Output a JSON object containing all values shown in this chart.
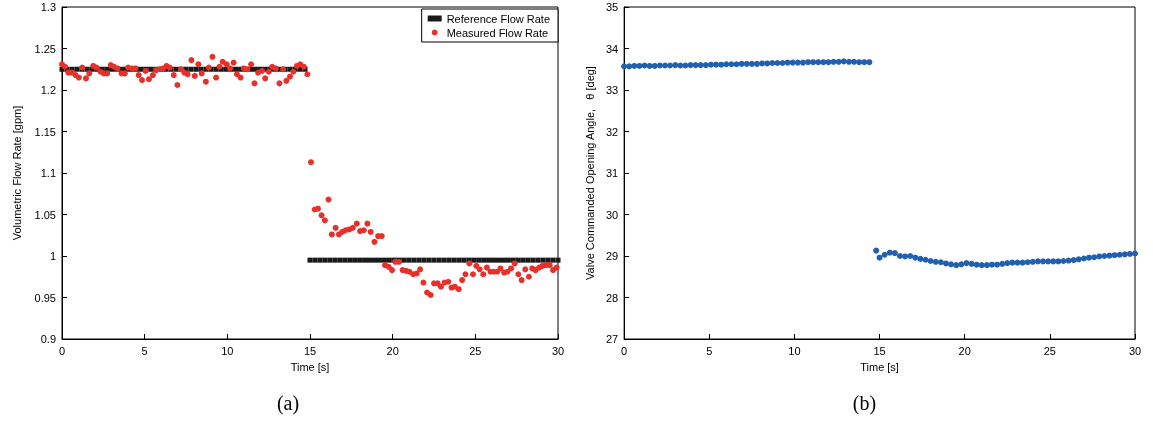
{
  "chart_data": [
    {
      "type": "scatter",
      "xlabel": "Time [s]",
      "ylabel": "Volumetric Flow Rate [gpm]",
      "xlim": [
        0,
        30
      ],
      "ylim": [
        0.9,
        1.3
      ],
      "xticks": [
        0,
        5,
        10,
        15,
        20,
        25,
        30
      ],
      "yticks": [
        0.9,
        0.95,
        1,
        1.05,
        1.1,
        1.15,
        1.2,
        1.25,
        1.3
      ],
      "grid": false,
      "legend": "top right",
      "annotations": [
        "(a)"
      ],
      "series": [
        {
          "name": "Reference Flow Rate",
          "color": "#1a1a1a",
          "marker": "square",
          "x": [
            0,
            0.3,
            0.6,
            0.9,
            1.2,
            1.5,
            1.8,
            2.1,
            2.4,
            2.7,
            3,
            3.3,
            3.6,
            3.9,
            4.2,
            4.5,
            4.8,
            5.1,
            5.4,
            5.7,
            6,
            6.3,
            6.6,
            6.9,
            7.2,
            7.5,
            7.8,
            8.1,
            8.4,
            8.7,
            9,
            9.3,
            9.6,
            9.9,
            10.2,
            10.5,
            10.8,
            11.1,
            11.4,
            11.7,
            12,
            12.3,
            12.6,
            12.9,
            13.2,
            13.5,
            13.8,
            14.1,
            14.4,
            14.7,
            15,
            15.3,
            15.6,
            15.9,
            16.2,
            16.5,
            16.8,
            17.1,
            17.4,
            17.7,
            18,
            18.3,
            18.6,
            18.9,
            19.2,
            19.5,
            19.8,
            20.1,
            20.4,
            20.7,
            21,
            21.3,
            21.6,
            21.9,
            22.2,
            22.5,
            22.8,
            23.1,
            23.4,
            23.7,
            24,
            24.3,
            24.6,
            24.9,
            25.2,
            25.5,
            25.8,
            26.1,
            26.4,
            26.7,
            27,
            27.3,
            27.6,
            27.9,
            28.2,
            28.5,
            28.8,
            29.1,
            29.4,
            29.7,
            30
          ],
          "values": [
            1.225,
            1.225,
            1.225,
            1.225,
            1.225,
            1.225,
            1.225,
            1.225,
            1.225,
            1.225,
            1.225,
            1.225,
            1.225,
            1.225,
            1.225,
            1.225,
            1.225,
            1.225,
            1.225,
            1.225,
            1.225,
            1.225,
            1.225,
            1.225,
            1.225,
            1.225,
            1.225,
            1.225,
            1.225,
            1.225,
            1.225,
            1.225,
            1.225,
            1.225,
            1.225,
            1.225,
            1.225,
            1.225,
            1.225,
            1.225,
            1.225,
            1.225,
            1.225,
            1.225,
            1.225,
            1.225,
            1.225,
            1.225,
            1.225,
            1.225,
            0.995,
            0.995,
            0.995,
            0.995,
            0.995,
            0.995,
            0.995,
            0.995,
            0.995,
            0.995,
            0.995,
            0.995,
            0.995,
            0.995,
            0.995,
            0.995,
            0.995,
            0.995,
            0.995,
            0.995,
            0.995,
            0.995,
            0.995,
            0.995,
            0.995,
            0.995,
            0.995,
            0.995,
            0.995,
            0.995,
            0.995,
            0.995,
            0.995,
            0.995,
            0.995,
            0.995,
            0.995,
            0.995,
            0.995,
            0.995,
            0.995,
            0.995,
            0.995,
            0.995,
            0.995,
            0.995,
            0.995,
            0.995,
            0.995,
            0.995,
            0.995
          ]
        },
        {
          "name": "Measured Flow Rate",
          "color": "#e8302a",
          "marker": "circle",
          "x": [
            0,
            0.18,
            0.38,
            0.58,
            0.82,
            1.02,
            1.22,
            1.45,
            1.65,
            1.89,
            2.09,
            2.33,
            2.53,
            2.73,
            2.95,
            3.15,
            3.35,
            3.6,
            3.8,
            4,
            4.24,
            4.44,
            4.64,
            4.84,
            5.06,
            5.26,
            5.5,
            5.7,
            5.92,
            6.12,
            6.32,
            6.52,
            6.76,
            6.98,
            7.2,
            7.4,
            7.6,
            7.83,
            8.03,
            8.25,
            8.45,
            8.7,
            8.88,
            9.1,
            9.32,
            9.52,
            9.72,
            9.96,
            10.16,
            10.38,
            10.58,
            10.8,
            11,
            11.22,
            11.44,
            11.64,
            11.86,
            12.1,
            12.29,
            12.51,
            12.71,
            12.93,
            13.15,
            13.37,
            13.57,
            13.79,
            13.99,
            14.21,
            14.41,
            14.63,
            14.84,
            15.06,
            15.28,
            15.48,
            15.7,
            15.9,
            16.12,
            16.32,
            16.55,
            16.75,
            16.95,
            17.15,
            17.37,
            17.59,
            17.83,
            18.03,
            18.25,
            18.47,
            18.67,
            18.9,
            19.12,
            19.34,
            19.54,
            19.76,
            19.96,
            20.16,
            20.38,
            20.6,
            20.82,
            21.02,
            21.24,
            21.46,
            21.66,
            21.86,
            22.08,
            22.3,
            22.5,
            22.72,
            22.92,
            23.14,
            23.36,
            23.56,
            23.76,
            24,
            24.2,
            24.4,
            24.64,
            24.86,
            25.06,
            25.26,
            25.48,
            25.7,
            25.92,
            26.12,
            26.32,
            26.52,
            26.74,
            26.94,
            27.16,
            27.38,
            27.6,
            27.8,
            28.02,
            28.24,
            28.44,
            28.64,
            28.86,
            29.06,
            29.28,
            29.5,
            29.7,
            29.92
          ],
          "values": [
            1.231,
            1.228,
            1.221,
            1.221,
            1.218,
            1.215,
            1.227,
            1.214,
            1.22,
            1.229,
            1.227,
            1.222,
            1.22,
            1.22,
            1.23,
            1.228,
            1.226,
            1.22,
            1.22,
            1.227,
            1.226,
            1.226,
            1.218,
            1.212,
            1.223,
            1.213,
            1.218,
            1.224,
            1.225,
            1.226,
            1.229,
            1.227,
            1.218,
            1.206,
            1.225,
            1.221,
            1.219,
            1.236,
            1.217,
            1.231,
            1.22,
            1.21,
            1.227,
            1.24,
            1.215,
            1.228,
            1.234,
            1.231,
            1.226,
            1.233,
            1.219,
            1.215,
            1.226,
            1.225,
            1.231,
            1.208,
            1.221,
            1.223,
            1.214,
            1.222,
            1.228,
            1.226,
            1.208,
            1.225,
            1.211,
            1.216,
            1.222,
            1.229,
            1.231,
            1.228,
            1.219,
            1.113,
            1.056,
            1.057,
            1.049,
            1.043,
            1.068,
            1.026,
            1.034,
            1.026,
            1.029,
            1.031,
            1.032,
            1.034,
            1.039,
            1.03,
            1.031,
            1.039,
            1.029,
            1.017,
            1.024,
            1.024,
            0.989,
            0.987,
            0.983,
            0.993,
            0.993,
            0.983,
            0.982,
            0.981,
            0.978,
            0.979,
            0.984,
            0.968,
            0.956,
            0.953,
            0.967,
            0.967,
            0.963,
            0.968,
            0.969,
            0.962,
            0.963,
            0.96,
            0.971,
            0.978,
            0.991,
            0.978,
            0.988,
            0.984,
            0.978,
            0.986,
            0.981,
            0.981,
            0.981,
            0.985,
            0.98,
            0.981,
            0.985,
            0.991,
            0.978,
            0.971,
            0.984,
            0.975,
            0.985,
            0.983,
            0.986,
            0.988,
            0.989,
            0.989,
            0.983,
            0.986
          ]
        }
      ]
    },
    {
      "type": "scatter",
      "xlabel": "Time [s]",
      "ylabel": "Valve Commanded Opening Angle,   θ [deg]",
      "xlim": [
        0,
        30
      ],
      "ylim": [
        27,
        35
      ],
      "xticks": [
        0,
        5,
        10,
        15,
        20,
        25,
        30
      ],
      "yticks": [
        27,
        28,
        29,
        30,
        31,
        32,
        33,
        34,
        35
      ],
      "grid": false,
      "legend": false,
      "annotations": [
        "(b)"
      ],
      "series": [
        {
          "color": "#2160b0",
          "marker": "circle",
          "x": [
            0,
            0.3,
            0.6,
            0.9,
            1.2,
            1.5,
            1.8,
            2.1,
            2.4,
            2.7,
            3,
            3.3,
            3.6,
            3.9,
            4.2,
            4.5,
            4.8,
            5.1,
            5.4,
            5.7,
            6,
            6.3,
            6.6,
            6.9,
            7.2,
            7.5,
            7.8,
            8.1,
            8.4,
            8.7,
            9,
            9.3,
            9.6,
            9.9,
            10.2,
            10.5,
            10.8,
            11.1,
            11.4,
            11.7,
            12,
            12.3,
            12.6,
            12.9,
            13.2,
            13.5,
            13.8,
            14.1,
            14.4,
            14.8,
            15,
            15.3,
            15.6,
            15.9,
            16.2,
            16.5,
            16.8,
            17.1,
            17.4,
            17.7,
            18,
            18.3,
            18.6,
            18.9,
            19.2,
            19.5,
            19.8,
            20.1,
            20.4,
            20.7,
            21,
            21.3,
            21.6,
            21.9,
            22.2,
            22.5,
            22.8,
            23.1,
            23.4,
            23.7,
            24,
            24.3,
            24.6,
            24.9,
            25.2,
            25.5,
            25.8,
            26.1,
            26.4,
            26.7,
            27,
            27.3,
            27.6,
            27.9,
            28.2,
            28.5,
            28.8,
            29.1,
            29.4,
            29.7,
            30
          ],
          "values": [
            33.57,
            33.57,
            33.58,
            33.58,
            33.59,
            33.58,
            33.58,
            33.59,
            33.59,
            33.59,
            33.6,
            33.59,
            33.59,
            33.6,
            33.6,
            33.6,
            33.6,
            33.61,
            33.61,
            33.61,
            33.62,
            33.62,
            33.62,
            33.63,
            33.63,
            33.63,
            33.63,
            33.64,
            33.64,
            33.65,
            33.65,
            33.65,
            33.66,
            33.66,
            33.66,
            33.66,
            33.67,
            33.67,
            33.67,
            33.67,
            33.67,
            33.68,
            33.68,
            33.69,
            33.68,
            33.68,
            33.67,
            33.67,
            33.67,
            29.13,
            28.96,
            29.03,
            29.08,
            29.07,
            29,
            28.99,
            29,
            28.96,
            28.93,
            28.91,
            28.88,
            28.86,
            28.85,
            28.82,
            28.8,
            28.78,
            28.8,
            28.83,
            28.81,
            28.79,
            28.78,
            28.78,
            28.79,
            28.79,
            28.81,
            28.83,
            28.84,
            28.84,
            28.84,
            28.85,
            28.86,
            28.87,
            28.87,
            28.87,
            28.87,
            28.87,
            28.88,
            28.89,
            28.9,
            28.92,
            28.94,
            28.96,
            28.97,
            28.99,
            29,
            29.01,
            29.02,
            29.03,
            29.04,
            29.05,
            29.06
          ]
        }
      ]
    }
  ]
}
